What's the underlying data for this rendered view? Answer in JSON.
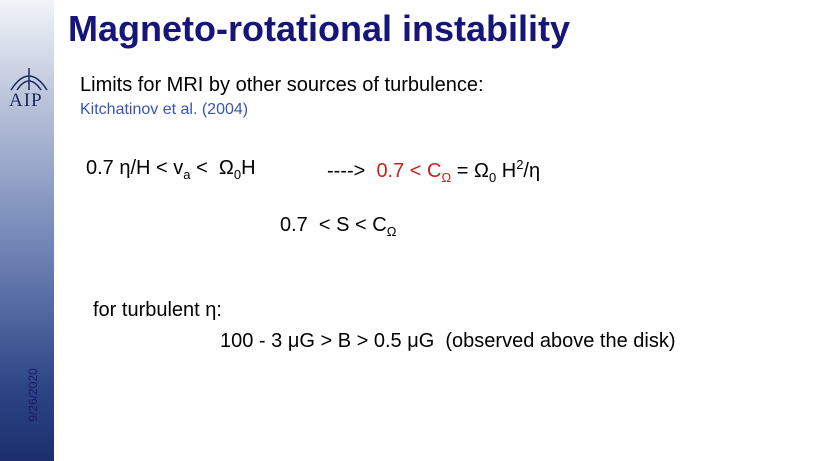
{
  "title": "Magneto-rotational instability",
  "subtitle": "Limits for MRI by other sources of turbulence:",
  "reference": "Kitchatinov et al. (2004)",
  "formula_1": [
    "0.7 η/H < v",
    "a",
    " <  Ω",
    "0",
    "H",
    "---->  ",
    "0.7 < C",
    "Ω",
    " = Ω",
    "0",
    " H",
    "2",
    "/η"
  ],
  "formula_2": [
    "0.7  < S < C",
    "Ω"
  ],
  "note": "for turbulent η:",
  "estimate": "100 - 3 μG > B > 0.5 μG  (observed above the disk)",
  "date": "9/26/2020",
  "logo": "AIP"
}
